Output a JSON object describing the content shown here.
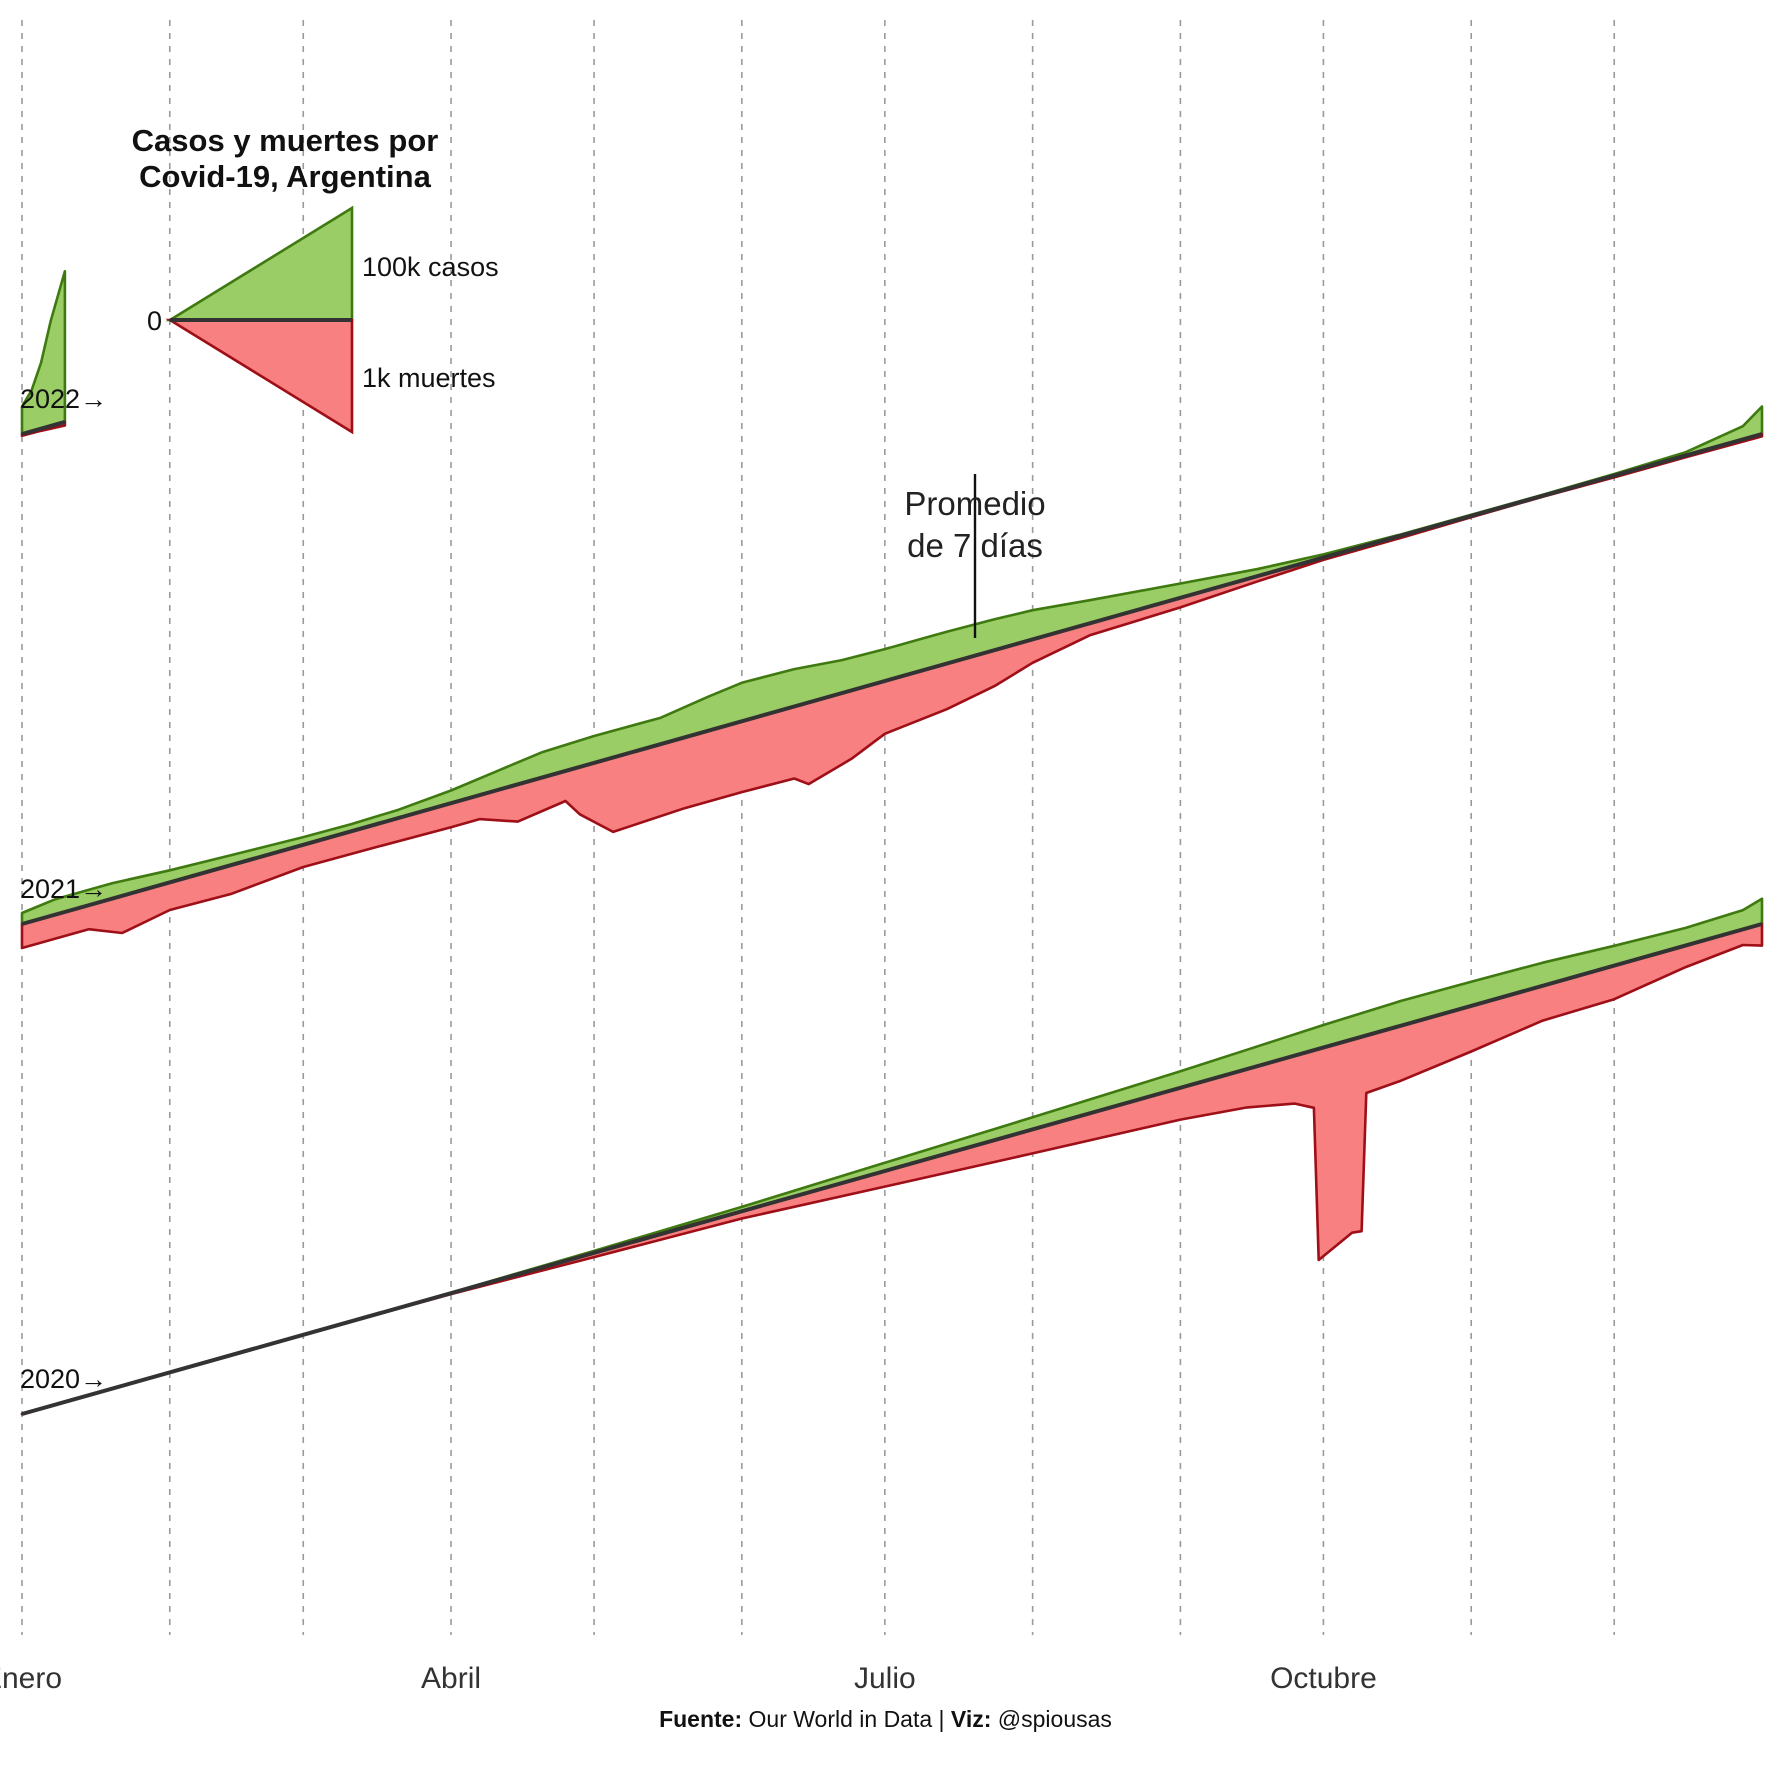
{
  "colors": {
    "cases_fill": "#9acd65",
    "cases_line": "#3f7a10",
    "deaths_fill": "#f98080",
    "deaths_line": "#9e0f17",
    "baseline": "#333333",
    "grid": "#9a9a9a"
  },
  "legend": {
    "title_line1": "Casos y muertes por",
    "title_line2": "Covid-19, Argentina",
    "zero_label": "0",
    "cases_label": "100k casos",
    "deaths_label": "1k muertes"
  },
  "annotation": {
    "line1": "Promedio",
    "line2": "de 7 días"
  },
  "caption": {
    "source_label": "Fuente:",
    "source_value": "Our World in Data",
    "separator": "|",
    "viz_label": "Viz:",
    "viz_value": "@spiousas"
  },
  "chart_data": {
    "type": "area",
    "x_axis": {
      "unit": "day of year",
      "range": [
        1,
        366
      ],
      "tick_labels": [
        "Enero",
        "Abril",
        "Julio",
        "Octubre"
      ],
      "tick_days": [
        1,
        91,
        182,
        274
      ],
      "minor_gridline_days": [
        1,
        32,
        60,
        91,
        121,
        152,
        182,
        213,
        244,
        274,
        305,
        335
      ]
    },
    "grid": "vertical dashed",
    "legend_placement": "top-left",
    "layout": "one baseline row per year, each a sloped strip; cases plotted above the baseline and deaths below",
    "scale": {
      "cases_reference": 100000,
      "deaths_reference": 1000
    },
    "rows": [
      {
        "label": "2020→",
        "year": 2020,
        "cases": [
          [
            1,
            0
          ],
          [
            60,
            0
          ],
          [
            91,
            500
          ],
          [
            121,
            1800
          ],
          [
            152,
            4000
          ],
          [
            182,
            7500
          ],
          [
            213,
            11000
          ],
          [
            244,
            15000
          ],
          [
            258,
            17500
          ],
          [
            274,
            20500
          ],
          [
            290,
            22500
          ],
          [
            305,
            22000
          ],
          [
            320,
            21000
          ],
          [
            335,
            18000
          ],
          [
            350,
            16000
          ],
          [
            362,
            17500
          ],
          [
            366,
            23000
          ]
        ],
        "deaths": [
          [
            1,
            0
          ],
          [
            60,
            0
          ],
          [
            91,
            8
          ],
          [
            121,
            35
          ],
          [
            152,
            60
          ],
          [
            182,
            130
          ],
          [
            213,
            200
          ],
          [
            244,
            265
          ],
          [
            258,
            320
          ],
          [
            268,
            400
          ],
          [
            272,
            480
          ],
          [
            273,
            1760
          ],
          [
            280,
            1610
          ],
          [
            282,
            1620
          ],
          [
            283,
            480
          ],
          [
            290,
            460
          ],
          [
            305,
            380
          ],
          [
            320,
            290
          ],
          [
            335,
            280
          ],
          [
            350,
            180
          ],
          [
            362,
            130
          ],
          [
            366,
            180
          ]
        ]
      },
      {
        "label": "2021→",
        "year": 2021,
        "cases": [
          [
            1,
            10000
          ],
          [
            8,
            14000
          ],
          [
            20,
            14000
          ],
          [
            32,
            11000
          ],
          [
            45,
            9000
          ],
          [
            60,
            7000
          ],
          [
            70,
            6500
          ],
          [
            80,
            7500
          ],
          [
            91,
            11500
          ],
          [
            100,
            17000
          ],
          [
            110,
            23000
          ],
          [
            121,
            24500
          ],
          [
            135,
            24000
          ],
          [
            145,
            31000
          ],
          [
            152,
            35000
          ],
          [
            163,
            34000
          ],
          [
            173,
            30000
          ],
          [
            182,
            29000
          ],
          [
            195,
            29000
          ],
          [
            205,
            28000
          ],
          [
            213,
            26500
          ],
          [
            225,
            21000
          ],
          [
            244,
            13000
          ],
          [
            260,
            6500
          ],
          [
            274,
            2800
          ],
          [
            290,
            1200
          ],
          [
            305,
            1000
          ],
          [
            320,
            1000
          ],
          [
            335,
            1500
          ],
          [
            350,
            3000
          ],
          [
            362,
            12000
          ],
          [
            366,
            25000
          ]
        ],
        "deaths": [
          [
            1,
            200
          ],
          [
            15,
            200
          ],
          [
            22,
            310
          ],
          [
            32,
            230
          ],
          [
            45,
            240
          ],
          [
            60,
            185
          ],
          [
            75,
            190
          ],
          [
            91,
            200
          ],
          [
            97,
            200
          ],
          [
            105,
            310
          ],
          [
            115,
            250
          ],
          [
            118,
            395
          ],
          [
            125,
            620
          ],
          [
            140,
            590
          ],
          [
            152,
            590
          ],
          [
            163,
            600
          ],
          [
            166,
            680
          ],
          [
            175,
            570
          ],
          [
            182,
            440
          ],
          [
            195,
            380
          ],
          [
            205,
            300
          ],
          [
            213,
            195
          ],
          [
            225,
            100
          ],
          [
            244,
            80
          ],
          [
            260,
            45
          ],
          [
            274,
            20
          ],
          [
            290,
            18
          ],
          [
            305,
            12
          ],
          [
            320,
            8
          ],
          [
            335,
            15
          ],
          [
            350,
            14
          ],
          [
            366,
            20
          ]
        ]
      },
      {
        "label": "2022→",
        "year": 2022,
        "cases": [
          [
            1,
            25000
          ],
          [
            3,
            37000
          ],
          [
            5,
            60000
          ],
          [
            7,
            95000
          ],
          [
            10,
            137000
          ]
        ],
        "deaths": [
          [
            1,
            15
          ],
          [
            5,
            18
          ],
          [
            10,
            30
          ]
        ]
      }
    ]
  }
}
